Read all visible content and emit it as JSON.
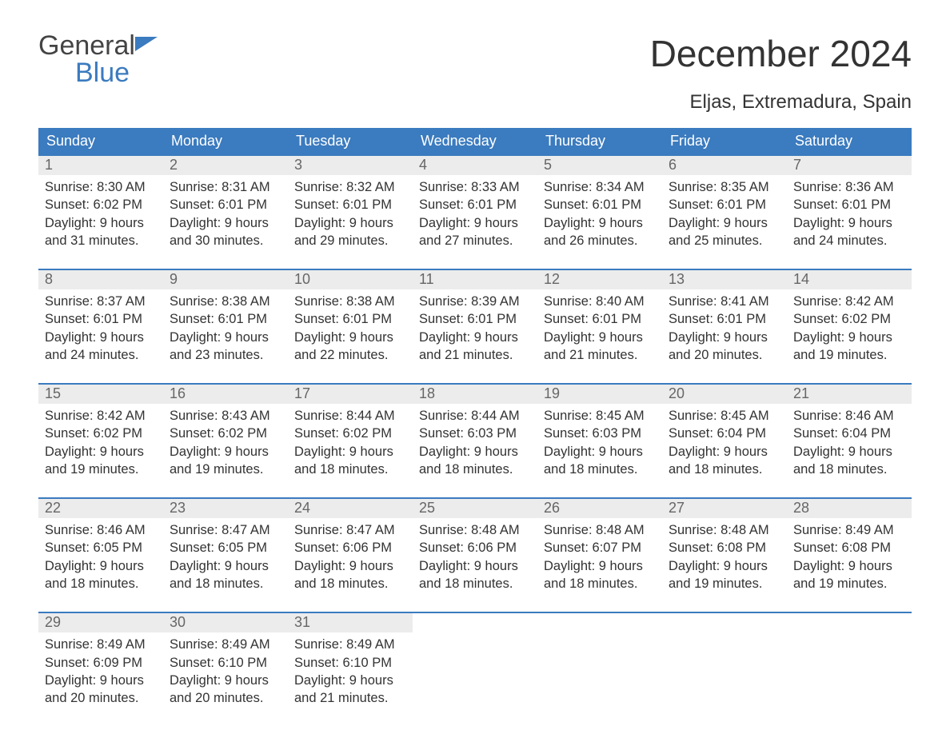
{
  "logo": {
    "word1": "General",
    "word2": "Blue"
  },
  "title": "December 2024",
  "subtitle": "Eljas, Extremadura, Spain",
  "colors": {
    "brand_blue": "#3b7bbf",
    "header_bg": "#3b7bbf",
    "header_text": "#ffffff",
    "daynum_bg": "#ececec",
    "daynum_text": "#666666",
    "body_text": "#333333",
    "background": "#ffffff",
    "week_border": "#3b7bbf"
  },
  "typography": {
    "title_fontsize": 46,
    "subtitle_fontsize": 24,
    "dow_fontsize": 18,
    "daynum_fontsize": 18,
    "body_fontsize": 16.5,
    "font_family": "Arial"
  },
  "layout": {
    "columns": 7,
    "weeks": 5,
    "blank_trailing_cells": 4
  },
  "dow": [
    "Sunday",
    "Monday",
    "Tuesday",
    "Wednesday",
    "Thursday",
    "Friday",
    "Saturday"
  ],
  "days": [
    {
      "n": "1",
      "sunrise": "Sunrise: 8:30 AM",
      "sunset": "Sunset: 6:02 PM",
      "d1": "Daylight: 9 hours",
      "d2": "and 31 minutes."
    },
    {
      "n": "2",
      "sunrise": "Sunrise: 8:31 AM",
      "sunset": "Sunset: 6:01 PM",
      "d1": "Daylight: 9 hours",
      "d2": "and 30 minutes."
    },
    {
      "n": "3",
      "sunrise": "Sunrise: 8:32 AM",
      "sunset": "Sunset: 6:01 PM",
      "d1": "Daylight: 9 hours",
      "d2": "and 29 minutes."
    },
    {
      "n": "4",
      "sunrise": "Sunrise: 8:33 AM",
      "sunset": "Sunset: 6:01 PM",
      "d1": "Daylight: 9 hours",
      "d2": "and 27 minutes."
    },
    {
      "n": "5",
      "sunrise": "Sunrise: 8:34 AM",
      "sunset": "Sunset: 6:01 PM",
      "d1": "Daylight: 9 hours",
      "d2": "and 26 minutes."
    },
    {
      "n": "6",
      "sunrise": "Sunrise: 8:35 AM",
      "sunset": "Sunset: 6:01 PM",
      "d1": "Daylight: 9 hours",
      "d2": "and 25 minutes."
    },
    {
      "n": "7",
      "sunrise": "Sunrise: 8:36 AM",
      "sunset": "Sunset: 6:01 PM",
      "d1": "Daylight: 9 hours",
      "d2": "and 24 minutes."
    },
    {
      "n": "8",
      "sunrise": "Sunrise: 8:37 AM",
      "sunset": "Sunset: 6:01 PM",
      "d1": "Daylight: 9 hours",
      "d2": "and 24 minutes."
    },
    {
      "n": "9",
      "sunrise": "Sunrise: 8:38 AM",
      "sunset": "Sunset: 6:01 PM",
      "d1": "Daylight: 9 hours",
      "d2": "and 23 minutes."
    },
    {
      "n": "10",
      "sunrise": "Sunrise: 8:38 AM",
      "sunset": "Sunset: 6:01 PM",
      "d1": "Daylight: 9 hours",
      "d2": "and 22 minutes."
    },
    {
      "n": "11",
      "sunrise": "Sunrise: 8:39 AM",
      "sunset": "Sunset: 6:01 PM",
      "d1": "Daylight: 9 hours",
      "d2": "and 21 minutes."
    },
    {
      "n": "12",
      "sunrise": "Sunrise: 8:40 AM",
      "sunset": "Sunset: 6:01 PM",
      "d1": "Daylight: 9 hours",
      "d2": "and 21 minutes."
    },
    {
      "n": "13",
      "sunrise": "Sunrise: 8:41 AM",
      "sunset": "Sunset: 6:01 PM",
      "d1": "Daylight: 9 hours",
      "d2": "and 20 minutes."
    },
    {
      "n": "14",
      "sunrise": "Sunrise: 8:42 AM",
      "sunset": "Sunset: 6:02 PM",
      "d1": "Daylight: 9 hours",
      "d2": "and 19 minutes."
    },
    {
      "n": "15",
      "sunrise": "Sunrise: 8:42 AM",
      "sunset": "Sunset: 6:02 PM",
      "d1": "Daylight: 9 hours",
      "d2": "and 19 minutes."
    },
    {
      "n": "16",
      "sunrise": "Sunrise: 8:43 AM",
      "sunset": "Sunset: 6:02 PM",
      "d1": "Daylight: 9 hours",
      "d2": "and 19 minutes."
    },
    {
      "n": "17",
      "sunrise": "Sunrise: 8:44 AM",
      "sunset": "Sunset: 6:02 PM",
      "d1": "Daylight: 9 hours",
      "d2": "and 18 minutes."
    },
    {
      "n": "18",
      "sunrise": "Sunrise: 8:44 AM",
      "sunset": "Sunset: 6:03 PM",
      "d1": "Daylight: 9 hours",
      "d2": "and 18 minutes."
    },
    {
      "n": "19",
      "sunrise": "Sunrise: 8:45 AM",
      "sunset": "Sunset: 6:03 PM",
      "d1": "Daylight: 9 hours",
      "d2": "and 18 minutes."
    },
    {
      "n": "20",
      "sunrise": "Sunrise: 8:45 AM",
      "sunset": "Sunset: 6:04 PM",
      "d1": "Daylight: 9 hours",
      "d2": "and 18 minutes."
    },
    {
      "n": "21",
      "sunrise": "Sunrise: 8:46 AM",
      "sunset": "Sunset: 6:04 PM",
      "d1": "Daylight: 9 hours",
      "d2": "and 18 minutes."
    },
    {
      "n": "22",
      "sunrise": "Sunrise: 8:46 AM",
      "sunset": "Sunset: 6:05 PM",
      "d1": "Daylight: 9 hours",
      "d2": "and 18 minutes."
    },
    {
      "n": "23",
      "sunrise": "Sunrise: 8:47 AM",
      "sunset": "Sunset: 6:05 PM",
      "d1": "Daylight: 9 hours",
      "d2": "and 18 minutes."
    },
    {
      "n": "24",
      "sunrise": "Sunrise: 8:47 AM",
      "sunset": "Sunset: 6:06 PM",
      "d1": "Daylight: 9 hours",
      "d2": "and 18 minutes."
    },
    {
      "n": "25",
      "sunrise": "Sunrise: 8:48 AM",
      "sunset": "Sunset: 6:06 PM",
      "d1": "Daylight: 9 hours",
      "d2": "and 18 minutes."
    },
    {
      "n": "26",
      "sunrise": "Sunrise: 8:48 AM",
      "sunset": "Sunset: 6:07 PM",
      "d1": "Daylight: 9 hours",
      "d2": "and 18 minutes."
    },
    {
      "n": "27",
      "sunrise": "Sunrise: 8:48 AM",
      "sunset": "Sunset: 6:08 PM",
      "d1": "Daylight: 9 hours",
      "d2": "and 19 minutes."
    },
    {
      "n": "28",
      "sunrise": "Sunrise: 8:49 AM",
      "sunset": "Sunset: 6:08 PM",
      "d1": "Daylight: 9 hours",
      "d2": "and 19 minutes."
    },
    {
      "n": "29",
      "sunrise": "Sunrise: 8:49 AM",
      "sunset": "Sunset: 6:09 PM",
      "d1": "Daylight: 9 hours",
      "d2": "and 20 minutes."
    },
    {
      "n": "30",
      "sunrise": "Sunrise: 8:49 AM",
      "sunset": "Sunset: 6:10 PM",
      "d1": "Daylight: 9 hours",
      "d2": "and 20 minutes."
    },
    {
      "n": "31",
      "sunrise": "Sunrise: 8:49 AM",
      "sunset": "Sunset: 6:10 PM",
      "d1": "Daylight: 9 hours",
      "d2": "and 21 minutes."
    }
  ]
}
